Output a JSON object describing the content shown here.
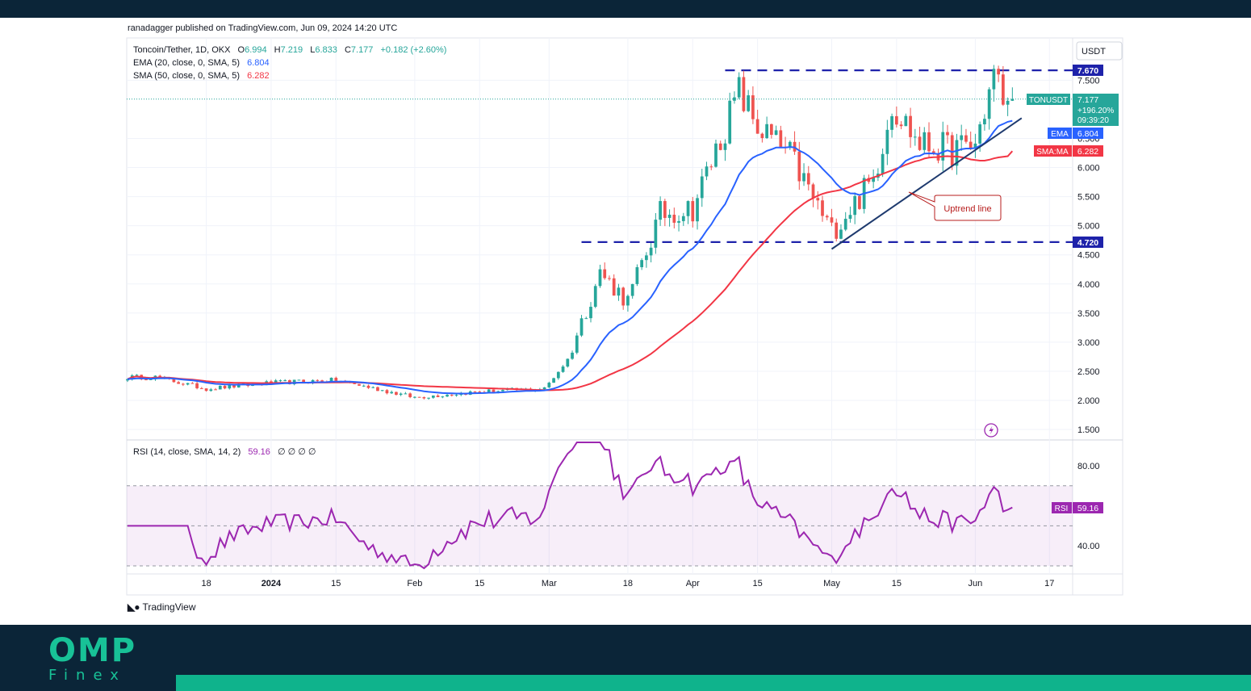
{
  "publisher": "ranadagger published on TradingView.com, Jun 09, 2024 14:20 UTC",
  "legend": {
    "symbol": "Toncoin/Tether, 1D, OKX",
    "o_label": "O",
    "o": "6.994",
    "h_label": "H",
    "h": "7.219",
    "l_label": "L",
    "l": "6.833",
    "c_label": "C",
    "c": "7.177",
    "change": "+0.182 (+2.60%)",
    "ema": "EMA (20, close, 0, SMA, 5)",
    "ema_value": "6.804",
    "sma": "SMA (50, close, 0, SMA, 5)",
    "sma_value": "6.282",
    "rsi": "RSI (14, close, SMA, 14, 2)",
    "rsi_value": "59.16",
    "rsi_extra": "∅ ∅ ∅ ∅"
  },
  "currency": "USDT",
  "tags": {
    "resistance": "7.670",
    "support": "4.720",
    "symbol": "TONUSDT",
    "price": "7.177",
    "pct": "+196.20%",
    "countdown": "09:39:20",
    "ema_label": "EMA",
    "ema_value": "6.804",
    "sma_label": "SMA:MA",
    "sma_value": "6.282",
    "rsi_label": "RSI",
    "rsi_value": "59.16"
  },
  "annotation": "Uptrend line",
  "tv_logo": "TradingView",
  "brand": {
    "name": "OMP",
    "sub": "Finex"
  },
  "colors": {
    "up": "#26a69a",
    "down": "#ef5350",
    "ema": "#2962ff",
    "sma": "#f23645",
    "rsi": "#9c27b0",
    "level": "#1e22aa",
    "trend": "#1e3a6e",
    "brand_green": "#18c297",
    "dark_bg": "#0b2538"
  },
  "chart_data": [
    {
      "type": "candlestick",
      "title": "Toncoin/Tether, 1D, OKX",
      "ylim": [
        1.5,
        7.9
      ],
      "y_ticks": [
        "7.500",
        "6.500",
        "6.000",
        "5.500",
        "5.000",
        "4.500",
        "4.000",
        "3.500",
        "3.000",
        "2.500",
        "2.000",
        "1.500"
      ],
      "x_ticks": [
        "18",
        "2024",
        "15",
        "Feb",
        "15",
        "Mar",
        "18",
        "Apr",
        "15",
        "May",
        "15",
        "Jun",
        "17"
      ],
      "grid": true,
      "levels": [
        {
          "name": "resistance",
          "value": 7.67
        },
        {
          "name": "support",
          "value": 4.72
        }
      ],
      "trendline": {
        "from": [
          "2024-05-01",
          4.6
        ],
        "to": [
          "2024-06-11",
          6.85
        ]
      },
      "keypoints_close": [
        {
          "x": "2023-12-07",
          "y": 2.4
        },
        {
          "x": "2023-12-18",
          "y": 2.2
        },
        {
          "x": "2024-01-01",
          "y": 2.3
        },
        {
          "x": "2024-01-15",
          "y": 2.35
        },
        {
          "x": "2024-02-01",
          "y": 2.05
        },
        {
          "x": "2024-02-15",
          "y": 2.15
        },
        {
          "x": "2024-02-29",
          "y": 2.2
        },
        {
          "x": "2024-03-05",
          "y": 2.7
        },
        {
          "x": "2024-03-12",
          "y": 4.2
        },
        {
          "x": "2024-03-18",
          "y": 3.7
        },
        {
          "x": "2024-03-25",
          "y": 5.2
        },
        {
          "x": "2024-04-01",
          "y": 5.3
        },
        {
          "x": "2024-04-11",
          "y": 7.3
        },
        {
          "x": "2024-04-15",
          "y": 6.7
        },
        {
          "x": "2024-04-22",
          "y": 6.2
        },
        {
          "x": "2024-05-01",
          "y": 4.9
        },
        {
          "x": "2024-05-10",
          "y": 5.8
        },
        {
          "x": "2024-05-14",
          "y": 7.1
        },
        {
          "x": "2024-05-20",
          "y": 6.4
        },
        {
          "x": "2024-05-27",
          "y": 6.3
        },
        {
          "x": "2024-06-01",
          "y": 6.4
        },
        {
          "x": "2024-06-05",
          "y": 7.6
        },
        {
          "x": "2024-06-08",
          "y": 7.0
        },
        {
          "x": "2024-06-09",
          "y": 7.177
        }
      ],
      "series": [
        {
          "name": "EMA (20, close, 0, SMA, 5)",
          "last": 6.804
        },
        {
          "name": "SMA (50, close, 0, SMA, 5)",
          "last": 6.282
        }
      ]
    },
    {
      "type": "line",
      "title": "RSI (14, close, SMA, 14, 2)",
      "y_ticks": [
        "80.00",
        "40.00"
      ],
      "bands": [
        70,
        50,
        30
      ],
      "last": 59.16
    }
  ]
}
